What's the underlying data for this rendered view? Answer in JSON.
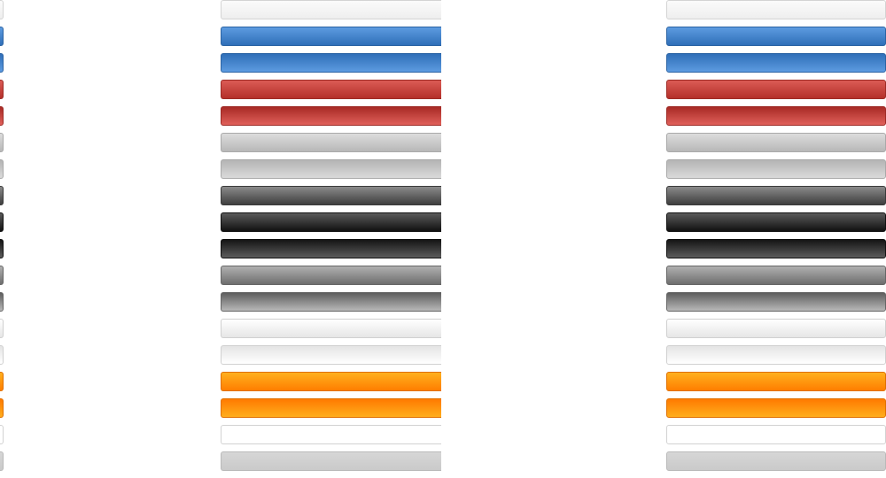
{
  "sprite": {
    "rows": [
      {
        "style": "light-gray",
        "top": "#fbfbfb",
        "bottom": "#eeeeee",
        "border": "#d4d4d4"
      },
      {
        "style": "blue",
        "top": "#5d9be0",
        "bottom": "#2f6fb8",
        "border": "#2b63a3"
      },
      {
        "style": "blue-pressed",
        "top": "#2f6fb8",
        "bottom": "#5d9be0",
        "border": "#2b63a3"
      },
      {
        "style": "red",
        "top": "#db5b55",
        "bottom": "#b4302a",
        "border": "#9d2a25"
      },
      {
        "style": "red-pressed",
        "top": "#a82a25",
        "bottom": "#e0605a",
        "border": "#9d2a25"
      },
      {
        "style": "silver",
        "top": "#dcdcdc",
        "bottom": "#b8b8b8",
        "border": "#a9a9a9"
      },
      {
        "style": "silver-pressed",
        "top": "#b4b4b4",
        "bottom": "#dadada",
        "border": "#a9a9a9"
      },
      {
        "style": "dark-gray",
        "top": "#8a8a8a",
        "bottom": "#3e3e3e",
        "border": "#3a3a3a"
      },
      {
        "style": "black",
        "top": "#5a5a5a",
        "bottom": "#111111",
        "border": "#111111"
      },
      {
        "style": "black-pressed",
        "top": "#151515",
        "bottom": "#5c5c5c",
        "border": "#111111"
      },
      {
        "style": "mid-gray",
        "top": "#b0b0b0",
        "bottom": "#6e6e6e",
        "border": "#666666"
      },
      {
        "style": "mid-gray-pressed",
        "top": "#5e5e5e",
        "bottom": "#b8b8b8",
        "border": "#666666"
      },
      {
        "style": "white",
        "top": "#ffffff",
        "bottom": "#e6e6e6",
        "border": "#d0d0d0"
      },
      {
        "style": "white-pressed",
        "top": "#e4e4e4",
        "bottom": "#ffffff",
        "border": "#d0d0d0"
      },
      {
        "style": "orange",
        "top": "#ffb01e",
        "bottom": "#ff7e00",
        "border": "#e07000"
      },
      {
        "style": "orange-pressed",
        "top": "#ff7a00",
        "bottom": "#ffae1c",
        "border": "#e07000"
      },
      {
        "style": "plain-white",
        "top": "#ffffff",
        "bottom": "#ffffff",
        "border": "#d2d2d2"
      },
      {
        "style": "plain-gray",
        "top": "#d6d6d6",
        "bottom": "#cacaca",
        "border": "#b9b9b9"
      }
    ]
  }
}
